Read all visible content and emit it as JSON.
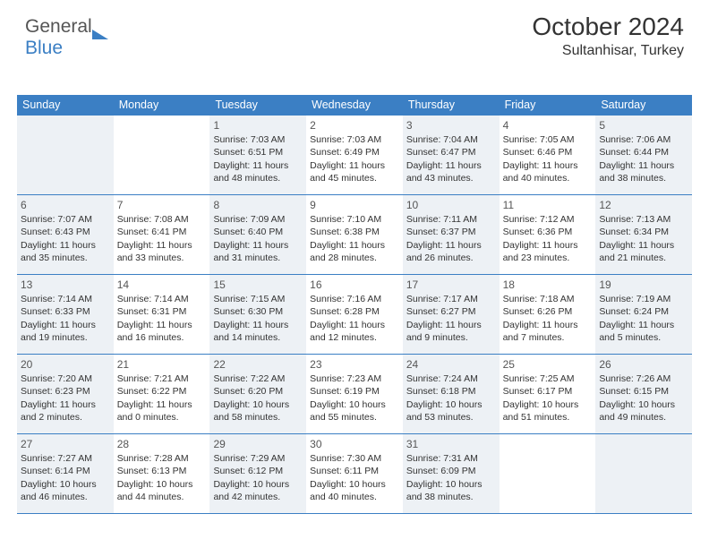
{
  "logo": {
    "text1": "General",
    "text2": "Blue"
  },
  "title": "October 2024",
  "location": "Sultanhisar, Turkey",
  "day_names": [
    "Sunday",
    "Monday",
    "Tuesday",
    "Wednesday",
    "Thursday",
    "Friday",
    "Saturday"
  ],
  "colors": {
    "header_bg": "#3b7fc4",
    "header_text": "#ffffff",
    "shade_bg": "#edf1f5",
    "border": "#3b7fc4",
    "text": "#333333"
  },
  "weeks": [
    [
      {
        "n": "",
        "sunrise": "",
        "sunset": "",
        "daylight": "",
        "shade": true
      },
      {
        "n": "",
        "sunrise": "",
        "sunset": "",
        "daylight": "",
        "shade": false
      },
      {
        "n": "1",
        "sunrise": "Sunrise: 7:03 AM",
        "sunset": "Sunset: 6:51 PM",
        "daylight": "Daylight: 11 hours and 48 minutes.",
        "shade": true
      },
      {
        "n": "2",
        "sunrise": "Sunrise: 7:03 AM",
        "sunset": "Sunset: 6:49 PM",
        "daylight": "Daylight: 11 hours and 45 minutes.",
        "shade": false
      },
      {
        "n": "3",
        "sunrise": "Sunrise: 7:04 AM",
        "sunset": "Sunset: 6:47 PM",
        "daylight": "Daylight: 11 hours and 43 minutes.",
        "shade": true
      },
      {
        "n": "4",
        "sunrise": "Sunrise: 7:05 AM",
        "sunset": "Sunset: 6:46 PM",
        "daylight": "Daylight: 11 hours and 40 minutes.",
        "shade": false
      },
      {
        "n": "5",
        "sunrise": "Sunrise: 7:06 AM",
        "sunset": "Sunset: 6:44 PM",
        "daylight": "Daylight: 11 hours and 38 minutes.",
        "shade": true
      }
    ],
    [
      {
        "n": "6",
        "sunrise": "Sunrise: 7:07 AM",
        "sunset": "Sunset: 6:43 PM",
        "daylight": "Daylight: 11 hours and 35 minutes.",
        "shade": true
      },
      {
        "n": "7",
        "sunrise": "Sunrise: 7:08 AM",
        "sunset": "Sunset: 6:41 PM",
        "daylight": "Daylight: 11 hours and 33 minutes.",
        "shade": false
      },
      {
        "n": "8",
        "sunrise": "Sunrise: 7:09 AM",
        "sunset": "Sunset: 6:40 PM",
        "daylight": "Daylight: 11 hours and 31 minutes.",
        "shade": true
      },
      {
        "n": "9",
        "sunrise": "Sunrise: 7:10 AM",
        "sunset": "Sunset: 6:38 PM",
        "daylight": "Daylight: 11 hours and 28 minutes.",
        "shade": false
      },
      {
        "n": "10",
        "sunrise": "Sunrise: 7:11 AM",
        "sunset": "Sunset: 6:37 PM",
        "daylight": "Daylight: 11 hours and 26 minutes.",
        "shade": true
      },
      {
        "n": "11",
        "sunrise": "Sunrise: 7:12 AM",
        "sunset": "Sunset: 6:36 PM",
        "daylight": "Daylight: 11 hours and 23 minutes.",
        "shade": false
      },
      {
        "n": "12",
        "sunrise": "Sunrise: 7:13 AM",
        "sunset": "Sunset: 6:34 PM",
        "daylight": "Daylight: 11 hours and 21 minutes.",
        "shade": true
      }
    ],
    [
      {
        "n": "13",
        "sunrise": "Sunrise: 7:14 AM",
        "sunset": "Sunset: 6:33 PM",
        "daylight": "Daylight: 11 hours and 19 minutes.",
        "shade": true
      },
      {
        "n": "14",
        "sunrise": "Sunrise: 7:14 AM",
        "sunset": "Sunset: 6:31 PM",
        "daylight": "Daylight: 11 hours and 16 minutes.",
        "shade": false
      },
      {
        "n": "15",
        "sunrise": "Sunrise: 7:15 AM",
        "sunset": "Sunset: 6:30 PM",
        "daylight": "Daylight: 11 hours and 14 minutes.",
        "shade": true
      },
      {
        "n": "16",
        "sunrise": "Sunrise: 7:16 AM",
        "sunset": "Sunset: 6:28 PM",
        "daylight": "Daylight: 11 hours and 12 minutes.",
        "shade": false
      },
      {
        "n": "17",
        "sunrise": "Sunrise: 7:17 AM",
        "sunset": "Sunset: 6:27 PM",
        "daylight": "Daylight: 11 hours and 9 minutes.",
        "shade": true
      },
      {
        "n": "18",
        "sunrise": "Sunrise: 7:18 AM",
        "sunset": "Sunset: 6:26 PM",
        "daylight": "Daylight: 11 hours and 7 minutes.",
        "shade": false
      },
      {
        "n": "19",
        "sunrise": "Sunrise: 7:19 AM",
        "sunset": "Sunset: 6:24 PM",
        "daylight": "Daylight: 11 hours and 5 minutes.",
        "shade": true
      }
    ],
    [
      {
        "n": "20",
        "sunrise": "Sunrise: 7:20 AM",
        "sunset": "Sunset: 6:23 PM",
        "daylight": "Daylight: 11 hours and 2 minutes.",
        "shade": true
      },
      {
        "n": "21",
        "sunrise": "Sunrise: 7:21 AM",
        "sunset": "Sunset: 6:22 PM",
        "daylight": "Daylight: 11 hours and 0 minutes.",
        "shade": false
      },
      {
        "n": "22",
        "sunrise": "Sunrise: 7:22 AM",
        "sunset": "Sunset: 6:20 PM",
        "daylight": "Daylight: 10 hours and 58 minutes.",
        "shade": true
      },
      {
        "n": "23",
        "sunrise": "Sunrise: 7:23 AM",
        "sunset": "Sunset: 6:19 PM",
        "daylight": "Daylight: 10 hours and 55 minutes.",
        "shade": false
      },
      {
        "n": "24",
        "sunrise": "Sunrise: 7:24 AM",
        "sunset": "Sunset: 6:18 PM",
        "daylight": "Daylight: 10 hours and 53 minutes.",
        "shade": true
      },
      {
        "n": "25",
        "sunrise": "Sunrise: 7:25 AM",
        "sunset": "Sunset: 6:17 PM",
        "daylight": "Daylight: 10 hours and 51 minutes.",
        "shade": false
      },
      {
        "n": "26",
        "sunrise": "Sunrise: 7:26 AM",
        "sunset": "Sunset: 6:15 PM",
        "daylight": "Daylight: 10 hours and 49 minutes.",
        "shade": true
      }
    ],
    [
      {
        "n": "27",
        "sunrise": "Sunrise: 7:27 AM",
        "sunset": "Sunset: 6:14 PM",
        "daylight": "Daylight: 10 hours and 46 minutes.",
        "shade": true
      },
      {
        "n": "28",
        "sunrise": "Sunrise: 7:28 AM",
        "sunset": "Sunset: 6:13 PM",
        "daylight": "Daylight: 10 hours and 44 minutes.",
        "shade": false
      },
      {
        "n": "29",
        "sunrise": "Sunrise: 7:29 AM",
        "sunset": "Sunset: 6:12 PM",
        "daylight": "Daylight: 10 hours and 42 minutes.",
        "shade": true
      },
      {
        "n": "30",
        "sunrise": "Sunrise: 7:30 AM",
        "sunset": "Sunset: 6:11 PM",
        "daylight": "Daylight: 10 hours and 40 minutes.",
        "shade": false
      },
      {
        "n": "31",
        "sunrise": "Sunrise: 7:31 AM",
        "sunset": "Sunset: 6:09 PM",
        "daylight": "Daylight: 10 hours and 38 minutes.",
        "shade": true
      },
      {
        "n": "",
        "sunrise": "",
        "sunset": "",
        "daylight": "",
        "shade": false
      },
      {
        "n": "",
        "sunrise": "",
        "sunset": "",
        "daylight": "",
        "shade": true
      }
    ]
  ]
}
